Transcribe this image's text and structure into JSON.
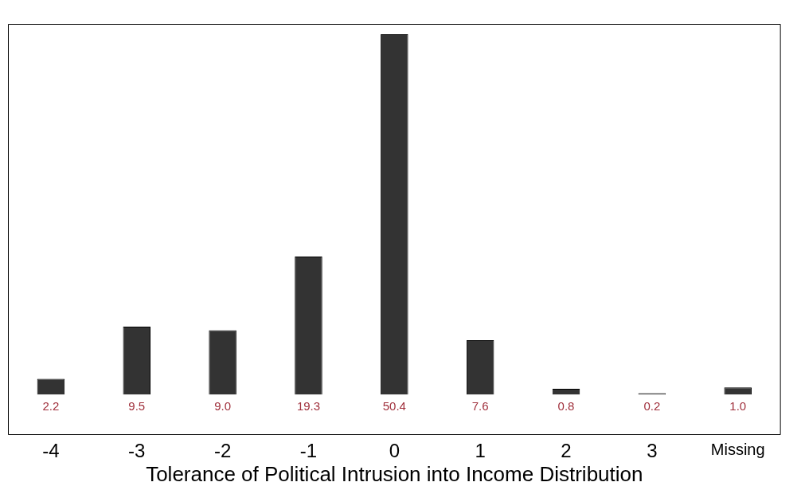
{
  "chart_data": {
    "type": "bar",
    "xlabel": "Tolerance of Political Intrusion into Income Distribution",
    "categories": [
      "-4",
      "-3",
      "-2",
      "-1",
      "0",
      "1",
      "2",
      "3",
      "Missing"
    ],
    "values": [
      2.2,
      9.5,
      9.0,
      19.3,
      50.4,
      7.6,
      0.8,
      0.2,
      1.0
    ],
    "value_labels": [
      "2.2",
      "9.5",
      "9.0",
      "19.3",
      "50.4",
      "7.6",
      "0.8",
      "0.2",
      "1.0"
    ],
    "color": "#333333"
  }
}
